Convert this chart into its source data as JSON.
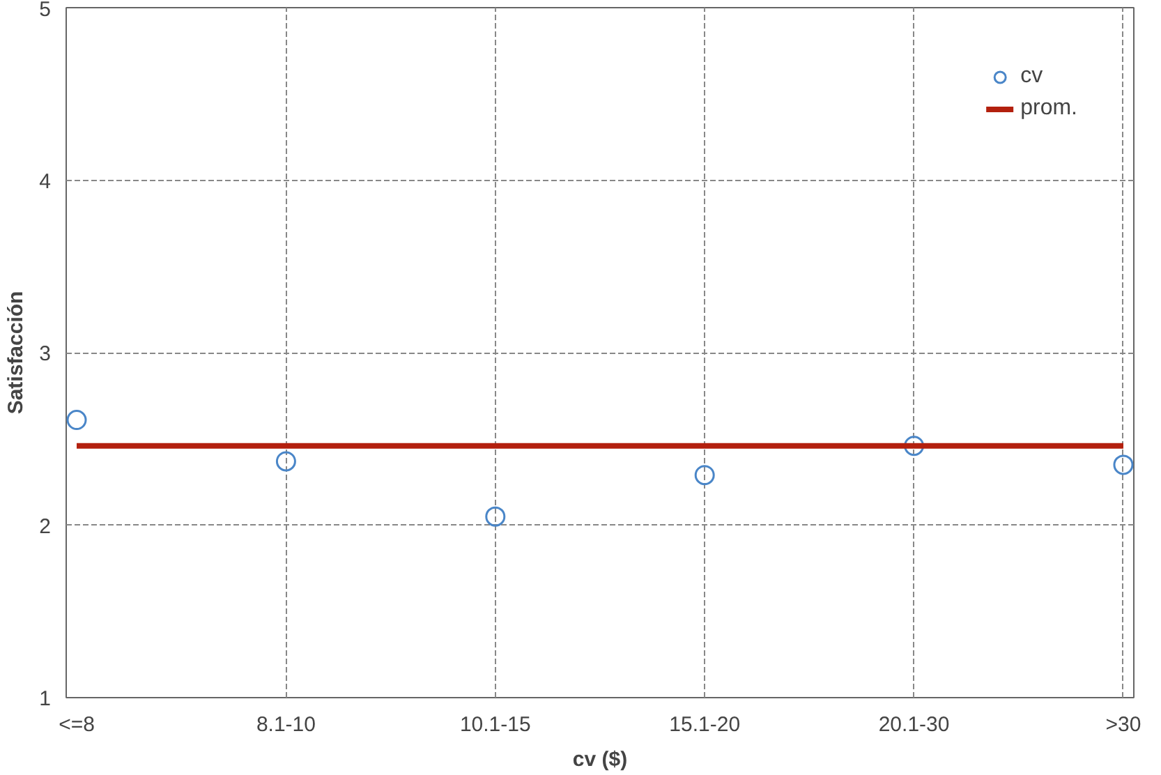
{
  "chart_data": {
    "type": "scatter",
    "xlabel": "cv ($)",
    "ylabel": "Satisfacción",
    "categories": [
      "<=8",
      "8.1-10",
      "10.1-15",
      "15.1-20",
      "20.1-30",
      ">30"
    ],
    "series": [
      {
        "name": "cv",
        "color": "#4a86c8",
        "marker": "circle",
        "values": [
          2.61,
          2.37,
          2.05,
          2.29,
          2.46,
          2.35
        ]
      },
      {
        "name": "prom.",
        "type": "line",
        "color": "#b3200e",
        "line_style": "solid",
        "values": [
          2.46,
          2.46,
          2.46,
          2.46,
          2.46,
          2.46
        ]
      }
    ],
    "ylim": [
      1,
      5
    ],
    "yticks": [
      1,
      2,
      3,
      4,
      5
    ],
    "grid": true,
    "legend": "top right"
  }
}
